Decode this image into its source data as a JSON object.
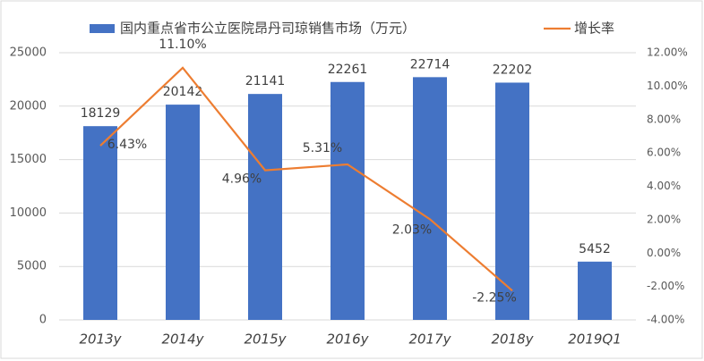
{
  "chart_data": {
    "type": "bar",
    "categories": [
      "2013y",
      "2014y",
      "2015y",
      "2016y",
      "2017y",
      "2018y",
      "2019Q1"
    ],
    "series": [
      {
        "name": "国内重点省市公立医院昂丹司琼销售市场（万元）",
        "color": "#4472c4",
        "values": [
          18129,
          20142,
          21141,
          22261,
          22714,
          22202,
          5452
        ]
      },
      {
        "name": "增长率",
        "type": "line",
        "axis": "y2",
        "color": "#ed7d31",
        "values": [
          6.43,
          11.1,
          4.96,
          5.31,
          2.03,
          -2.25,
          null
        ],
        "value_labels": [
          "6.43%",
          "11.10%",
          "4.96%",
          "5.31%",
          "2.03%",
          "-2.25%",
          null
        ]
      }
    ],
    "ylim": [
      0,
      25000
    ],
    "yticks": [
      0,
      5000,
      10000,
      15000,
      20000,
      25000
    ],
    "y2lim": [
      -4,
      12
    ],
    "y2ticks": [
      {
        "value": -4,
        "label": "-4.00%"
      },
      {
        "value": -2,
        "label": "-2.00%"
      },
      {
        "value": 0,
        "label": "0.00%"
      },
      {
        "value": 2,
        "label": "2.00%"
      },
      {
        "value": 4,
        "label": "4.00%"
      },
      {
        "value": 6,
        "label": "6.00%"
      },
      {
        "value": 8,
        "label": "8.00%"
      },
      {
        "value": 10,
        "label": "10.00%"
      },
      {
        "value": 12,
        "label": "12.00%"
      }
    ],
    "grid": true
  }
}
